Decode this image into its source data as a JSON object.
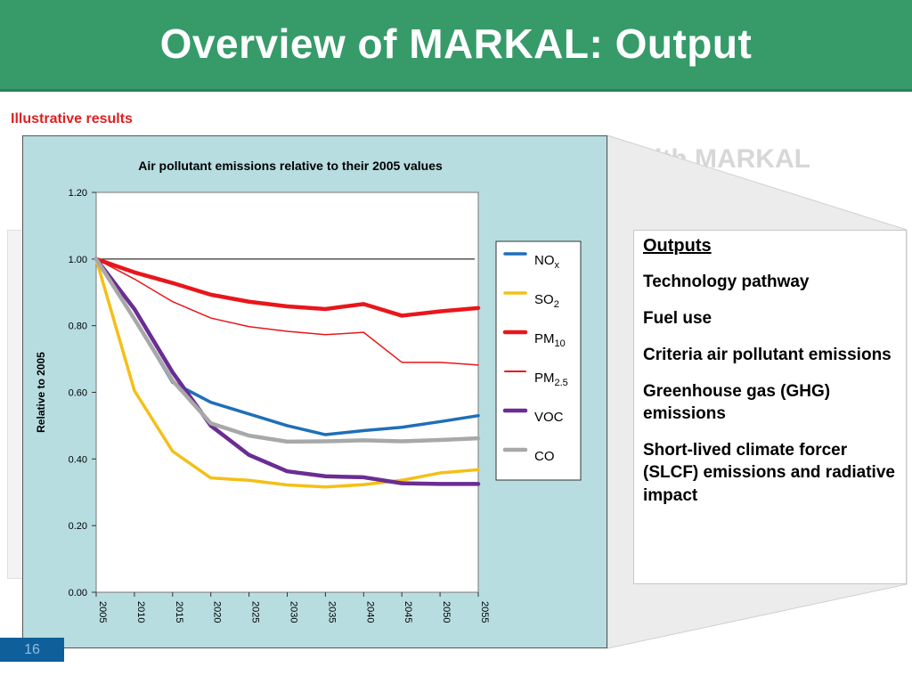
{
  "slide": {
    "title": "Overview of MARKAL: Output",
    "subtitle": "Illustrative results",
    "background_text": "ith MARKAL",
    "page_number": "16"
  },
  "outputs": {
    "heading": "Outputs",
    "items": [
      "Technology pathway",
      "Fuel use",
      "Criteria air pollutant emissions",
      "Greenhouse gas  (GHG) emissions",
      "Short-lived climate forcer (SLCF) emissions and radiative impact"
    ]
  },
  "colors": {
    "header": "#369b69",
    "chart_background": "#b7dde1",
    "subtitle": "#e02020"
  },
  "chart_data": {
    "type": "line",
    "title": "Air pollutant emissions relative to their 2005 values",
    "xlabel": "",
    "ylabel": "Relative to 2005",
    "x": [
      "2005",
      "2010",
      "2015",
      "2020",
      "2025",
      "2030",
      "2035",
      "2040",
      "2045",
      "2050",
      "2055"
    ],
    "ylim": [
      0,
      1.2
    ],
    "yticks": [
      "0.00",
      "0.20",
      "0.40",
      "0.60",
      "0.80",
      "1.00",
      "1.20"
    ],
    "reference_line": 1.0,
    "legend_position": "right",
    "series": [
      {
        "name": "NO",
        "sub": "x",
        "color": "#1f6fb7",
        "width": 3.5,
        "values": [
          1.0,
          0.82,
          0.63,
          0.57,
          0.535,
          0.5,
          0.473,
          0.485,
          0.495,
          0.512,
          0.53
        ]
      },
      {
        "name": "SO",
        "sub": "2",
        "color": "#f5bf16",
        "width": 3.5,
        "values": [
          1.0,
          0.605,
          0.423,
          0.343,
          0.336,
          0.322,
          0.316,
          0.323,
          0.336,
          0.358,
          0.368
        ]
      },
      {
        "name": "PM",
        "sub": "10",
        "color": "#e8161b",
        "width": 4.5,
        "values": [
          1.0,
          0.96,
          0.928,
          0.893,
          0.872,
          0.858,
          0.85,
          0.865,
          0.83,
          0.843,
          0.853
        ]
      },
      {
        "name": "PM",
        "sub": "2.5",
        "color": "#e8161b",
        "width": 1.5,
        "values": [
          1.0,
          0.94,
          0.872,
          0.823,
          0.797,
          0.783,
          0.773,
          0.78,
          0.69,
          0.69,
          0.682
        ]
      },
      {
        "name": "VOC",
        "sub": "",
        "color": "#6a2d93",
        "width": 4.5,
        "values": [
          1.0,
          0.85,
          0.66,
          0.5,
          0.412,
          0.363,
          0.348,
          0.345,
          0.327,
          0.325,
          0.325
        ]
      },
      {
        "name": "CO",
        "sub": "",
        "color": "#a8a8a8",
        "width": 4.5,
        "values": [
          1.0,
          0.82,
          0.635,
          0.507,
          0.47,
          0.452,
          0.453,
          0.456,
          0.453,
          0.457,
          0.462
        ]
      }
    ]
  }
}
